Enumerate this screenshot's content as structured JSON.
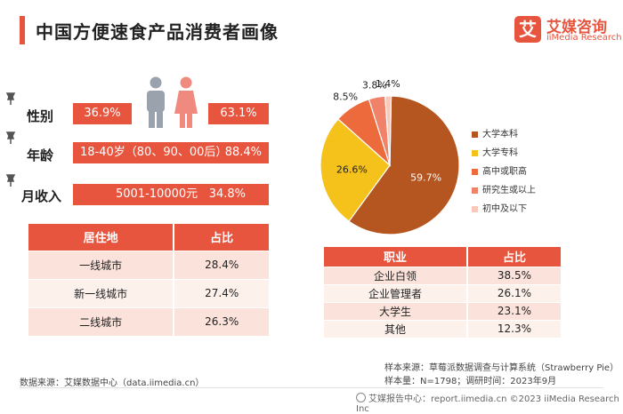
{
  "header": {
    "title": "中国方便速食产品消费者画像",
    "logo_mark": "艾",
    "logo_cn": "艾媒咨询",
    "logo_en": "iiMedia Research"
  },
  "profile": {
    "gender": {
      "label": "性别",
      "male": "36.9%",
      "female": "63.1%"
    },
    "age": {
      "label": "年龄",
      "range": "18-40岁（80、90、00后）",
      "value": "88.4%"
    },
    "income": {
      "label": "月收入",
      "text": "5001-10000元",
      "value": "34.8%"
    }
  },
  "residence_table": {
    "headers": [
      "居住地",
      "占比"
    ],
    "rows": [
      [
        "一线城市",
        "28.4%"
      ],
      [
        "新一线城市",
        "27.4%"
      ],
      [
        "二线城市",
        "26.3%"
      ]
    ]
  },
  "occupation_table": {
    "headers": [
      "职业",
      "占比"
    ],
    "rows": [
      [
        "企业白领",
        "38.5%"
      ],
      [
        "企业管理者",
        "26.1%"
      ],
      [
        "大学生",
        "23.1%"
      ],
      [
        "其他",
        "12.3%"
      ]
    ]
  },
  "colors": {
    "accent": "#e8553f",
    "pie": [
      "#b5551f",
      "#f5c21b",
      "#ec6a3c",
      "#f0826a",
      "#f9c8bb"
    ]
  },
  "chart_data": {
    "type": "pie",
    "labels": [
      "大学本科",
      "大学专科",
      "高中或职高",
      "研究生或以上",
      "初中及以下"
    ],
    "values": [
      59.7,
      26.6,
      8.5,
      3.8,
      1.4
    ],
    "value_labels": [
      "59.7%",
      "26.6%",
      "8.5%",
      "3.8%",
      "1.4%"
    ],
    "legend_position": "right"
  },
  "footer": {
    "source_left": "数据来源：艾媒数据中心（data.iimedia.cn）",
    "sample_source": "样本来源：草莓派数据调查与计算系统（Strawberry Pie）",
    "sample_size": "样本量：N=1798；调研时间：2023年9月",
    "copyright": "艾媒报告中心：report.iimedia.cn ©2023 iiMedia Research Inc"
  }
}
